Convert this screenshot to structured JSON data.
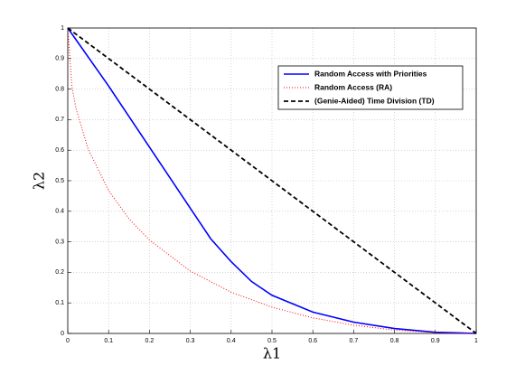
{
  "chart_data": {
    "type": "line",
    "xlabel": "λ1",
    "ylabel": "λ2",
    "xlim": [
      0,
      1
    ],
    "ylim": [
      0,
      1
    ],
    "xticks": [
      0,
      0.1,
      0.2,
      0.3,
      0.4,
      0.5,
      0.6,
      0.7,
      0.8,
      0.9,
      1
    ],
    "yticks": [
      0,
      0.1,
      0.2,
      0.3,
      0.4,
      0.5,
      0.6,
      0.7,
      0.8,
      0.9,
      1
    ],
    "grid": true,
    "legend_position": "northeast",
    "series": [
      {
        "name": "Random Access with Priorities",
        "color": "#0000ff",
        "style": "solid",
        "x": [
          0,
          0.1,
          0.2,
          0.3,
          0.35,
          0.4,
          0.45,
          0.5,
          0.6,
          0.7,
          0.8,
          0.9,
          1
        ],
        "values": [
          1,
          0.81,
          0.61,
          0.41,
          0.31,
          0.235,
          0.17,
          0.125,
          0.07,
          0.037,
          0.016,
          0.004,
          0
        ]
      },
      {
        "name": "Random Access (RA)",
        "color": "#ff0000",
        "style": "dotted",
        "x": [
          0,
          0.01,
          0.02,
          0.05,
          0.1,
          0.15,
          0.2,
          0.3,
          0.4,
          0.5,
          0.6,
          0.7,
          0.8,
          0.9,
          1
        ],
        "values": [
          1,
          0.81,
          0.737,
          0.603,
          0.468,
          0.375,
          0.306,
          0.204,
          0.135,
          0.086,
          0.051,
          0.027,
          0.011,
          0.003,
          0
        ]
      },
      {
        "name": "(Genie-Aided) Time Division (TD)",
        "color": "#000000",
        "style": "dashed",
        "x": [
          0,
          1
        ],
        "values": [
          1,
          0
        ]
      }
    ]
  }
}
